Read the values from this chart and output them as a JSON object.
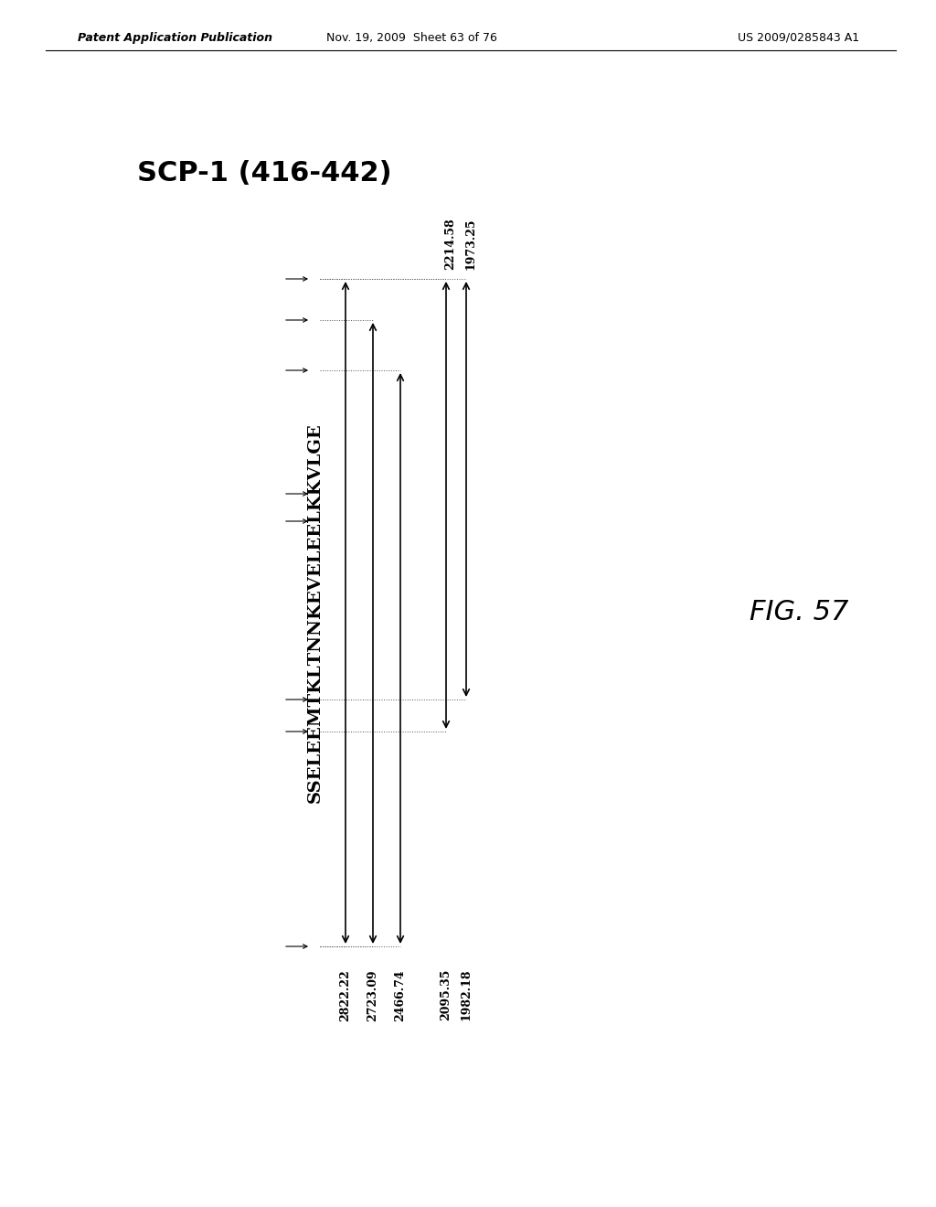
{
  "patent_header_left": "Patent Application Publication",
  "patent_header_mid": "Nov. 19, 2009  Sheet 63 of 76",
  "patent_header_right": "US 2009/0285843 A1",
  "main_title": "SCP-1 (416-442)",
  "fig_label": "FIG. 57",
  "sequence": "SSELEEMTKLТNNKEVELEELKKVLGE",
  "bottom_labels": [
    "2822.22",
    "2723.09",
    "2466.74",
    "2095.35",
    "1982.18"
  ],
  "top_labels": [
    "2214.58",
    "1973.25"
  ],
  "background_color": "#ffffff",
  "arrow_color": "#000000",
  "line_color": "#555555"
}
